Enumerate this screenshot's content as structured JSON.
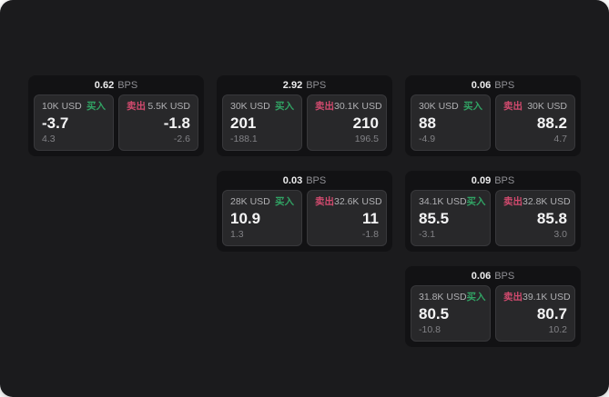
{
  "labels": {
    "bps_unit": "BPS",
    "buy": "买入",
    "sell": "卖出"
  },
  "colors": {
    "screen_bg": "#1b1b1d",
    "card_bg": "#121214",
    "panel_bg": "#28282a",
    "panel_border": "#38383b",
    "buy_green": "#31a364",
    "sell_rose": "#d14a6e"
  },
  "cards": [
    {
      "bps": "0.62",
      "buy": {
        "size": "10K USD",
        "value": "-3.7",
        "sub": "4.3"
      },
      "sell": {
        "size": "5.5K USD",
        "value": "-1.8",
        "sub": "-2.6"
      }
    },
    {
      "bps": "2.92",
      "buy": {
        "size": "30K USD",
        "value": "201",
        "sub": "-188.1"
      },
      "sell": {
        "size": "30.1K USD",
        "value": "210",
        "sub": "196.5"
      }
    },
    {
      "bps": "0.06",
      "buy": {
        "size": "30K USD",
        "value": "88",
        "sub": "-4.9"
      },
      "sell": {
        "size": "30K USD",
        "value": "88.2",
        "sub": "4.7"
      }
    },
    {
      "bps": "0.03",
      "buy": {
        "size": "28K USD",
        "value": "10.9",
        "sub": "1.3"
      },
      "sell": {
        "size": "32.6K USD",
        "value": "11",
        "sub": "-1.8"
      }
    },
    {
      "bps": "0.09",
      "buy": {
        "size": "34.1K USD",
        "value": "85.5",
        "sub": "-3.1"
      },
      "sell": {
        "size": "32.8K USD",
        "value": "85.8",
        "sub": "3.0"
      }
    },
    {
      "bps": "0.06",
      "buy": {
        "size": "31.8K USD",
        "value": "80.5",
        "sub": "-10.8"
      },
      "sell": {
        "size": "39.1K USD",
        "value": "80.7",
        "sub": "10.2"
      }
    }
  ]
}
